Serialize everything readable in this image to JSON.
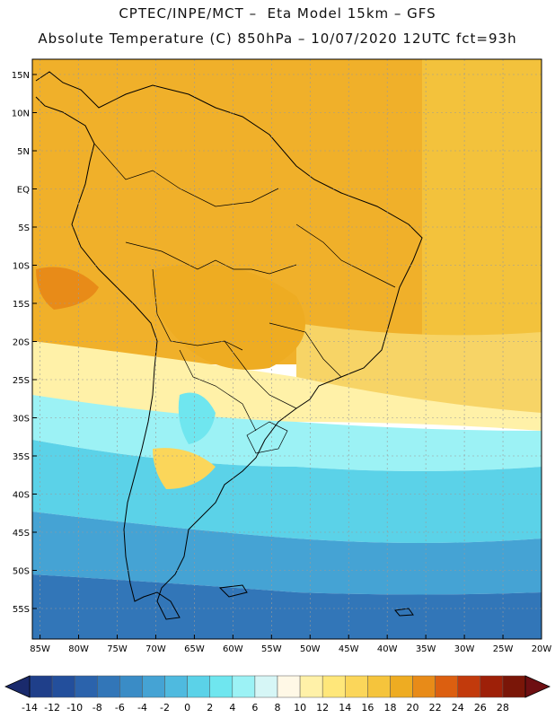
{
  "header": {
    "line1": "CPTEC/INPE/MCT –  Eta Model 15km – GFS",
    "line2": "Absolute Temperature (C) 850hPa – 10/07/2020 12UTC fct=93h"
  },
  "map": {
    "projection": "lat-lon",
    "lon_range": [
      -86,
      -20
    ],
    "lat_range": [
      -59,
      17
    ],
    "lat_labels": [
      "15N",
      "10N",
      "5N",
      "EQ",
      "5S",
      "10S",
      "15S",
      "20S",
      "25S",
      "30S",
      "35S",
      "40S",
      "45S",
      "50S",
      "55S"
    ],
    "lat_values": [
      15,
      10,
      5,
      0,
      -5,
      -10,
      -15,
      -20,
      -25,
      -30,
      -35,
      -40,
      -45,
      -50,
      -55
    ],
    "lon_labels": [
      "85W",
      "80W",
      "75W",
      "70W",
      "65W",
      "60W",
      "55W",
      "50W",
      "45W",
      "40W",
      "35W",
      "30W",
      "25W",
      "20W"
    ],
    "lon_values": [
      -85,
      -80,
      -75,
      -70,
      -65,
      -60,
      -55,
      -50,
      -45,
      -40,
      -35,
      -30,
      -25,
      -20
    ]
  },
  "colorbar": {
    "labels": [
      "-14",
      "-12",
      "-10",
      "-8",
      "-6",
      "-4",
      "-2",
      "0",
      "2",
      "4",
      "6",
      "8",
      "10",
      "12",
      "14",
      "16",
      "18",
      "20",
      "22",
      "24",
      "26",
      "28"
    ],
    "colors": [
      "#1f3f8a",
      "#234f9c",
      "#2b63ac",
      "#3276b8",
      "#3a8cc6",
      "#45a3d4",
      "#4fbadf",
      "#5bd2e8",
      "#6fe6ef",
      "#9cf2f5",
      "#d6f6f6",
      "#fff8e6",
      "#fff1a8",
      "#ffe77a",
      "#fbd65a",
      "#f5c43c",
      "#eeac22",
      "#e88b18",
      "#dc5f10",
      "#c23a0c",
      "#9e2008",
      "#7a1608"
    ],
    "low_end_color": "#1a2a6c",
    "high_end_color": "#6e0f12"
  }
}
